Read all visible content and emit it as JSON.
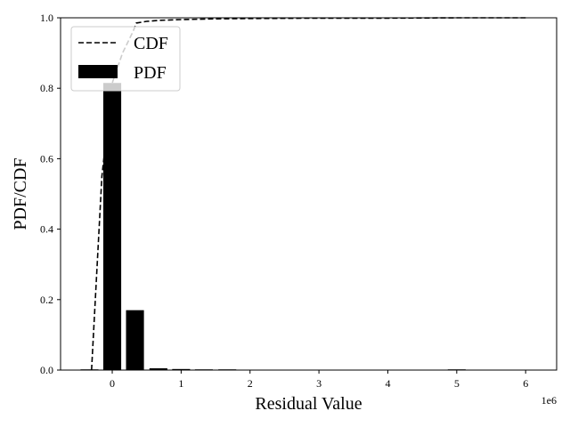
{
  "chart_data": {
    "type": "bar",
    "title": "",
    "xlabel": "Residual Value",
    "ylabel": "PDF/CDF",
    "x_offset_label": "1e6",
    "x_scale": 1000000,
    "xlim": [
      -750000,
      6450000
    ],
    "ylim": [
      0,
      1.0
    ],
    "x_ticks": [
      0,
      1,
      2,
      3,
      4,
      5,
      6
    ],
    "y_ticks": [
      "0.0",
      "0.2",
      "0.4",
      "0.6",
      "0.8",
      "1.0"
    ],
    "grid": false,
    "legend_position": "upper-left",
    "legend": [
      {
        "label": "CDF",
        "style": "dashed-line"
      },
      {
        "label": "PDF",
        "style": "filled-bar"
      }
    ],
    "series": [
      {
        "name": "PDF",
        "kind": "bar",
        "bar_width": 260000,
        "x": [
          -330000,
          0,
          330000,
          670000,
          1000000,
          1330000,
          1670000,
          5000000
        ],
        "values": [
          0.002,
          0.815,
          0.17,
          0.005,
          0.003,
          0.002,
          0.002,
          0.002
        ]
      },
      {
        "name": "CDF",
        "kind": "line",
        "dash": true,
        "x": [
          -300000,
          -150000,
          0,
          150000,
          300000,
          350000,
          500000,
          700000,
          1000000,
          1500000,
          2000000,
          3000000,
          4000000,
          5000000,
          6000000
        ],
        "values": [
          0.0,
          0.55,
          0.815,
          0.9,
          0.96,
          0.985,
          0.99,
          0.993,
          0.995,
          0.997,
          0.998,
          0.999,
          0.999,
          1.0,
          1.0
        ]
      }
    ]
  }
}
